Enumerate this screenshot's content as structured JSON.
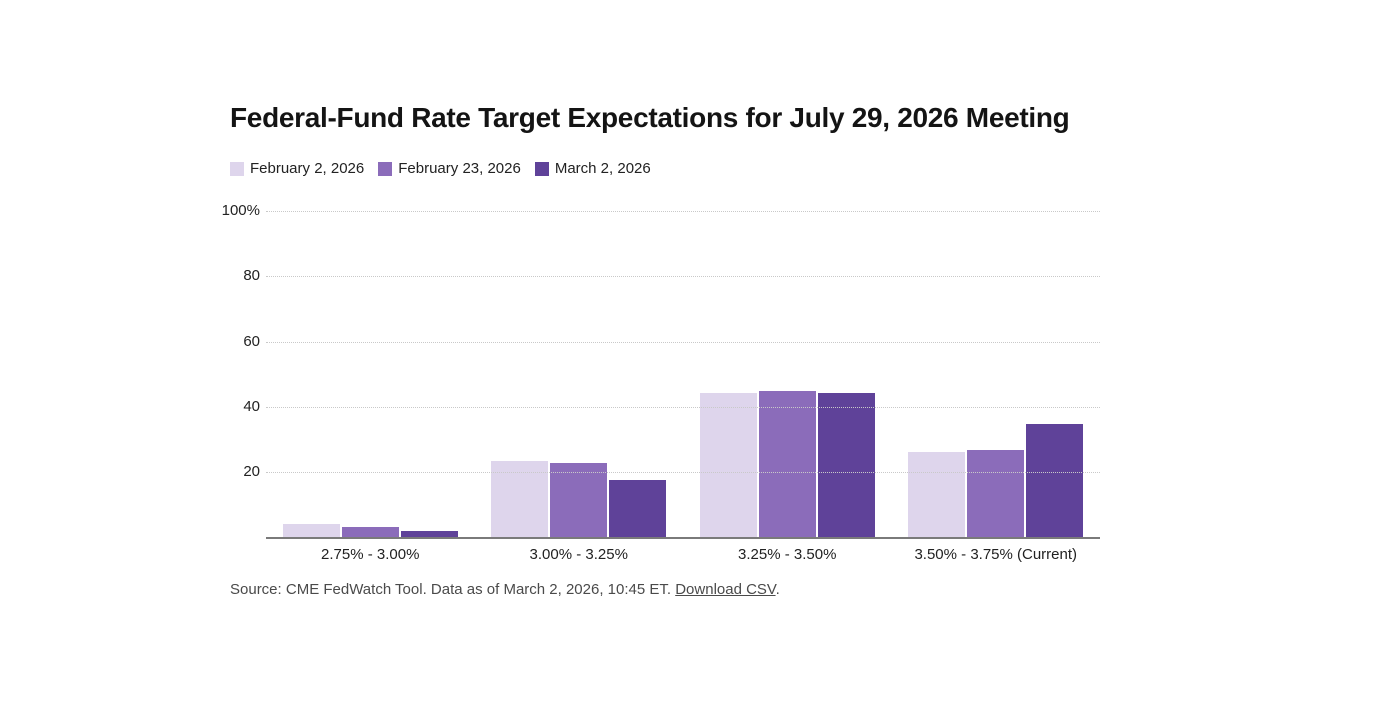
{
  "chart_data": {
    "type": "bar",
    "title": "Federal-Fund Rate Target Expectations for July 29, 2026 Meeting",
    "categories": [
      "2.75% - 3.00%",
      "3.00% - 3.25%",
      "3.25% - 3.50%",
      "3.50% - 3.75% (Current)"
    ],
    "series": [
      {
        "name": "February 2, 2026",
        "color": "#ded5ec",
        "values": [
          4.1,
          23.4,
          44.1,
          26.1
        ]
      },
      {
        "name": "February 23, 2026",
        "color": "#8b6cba",
        "values": [
          3.2,
          22.9,
          45.0,
          26.8
        ]
      },
      {
        "name": "March 2, 2026",
        "color": "#5f4299",
        "values": [
          1.9,
          17.4,
          44.2,
          34.7
        ]
      }
    ],
    "xlabel": "",
    "ylabel": "",
    "ylim": [
      0,
      100
    ],
    "yticks": [
      20,
      40,
      60,
      80,
      100
    ],
    "ytick_labels": [
      "20",
      "40",
      "60",
      "80",
      "100%"
    ],
    "grid": "horizontal-dotted",
    "legend_position": "top-left"
  },
  "source": {
    "prefix": "Source: CME FedWatch Tool. Data as of March 2, 2026, 10:45 ET. ",
    "link_label": "Download CSV",
    "suffix": "."
  },
  "colors": {
    "title_text": "#141414",
    "axis_text": "#222222",
    "gridline": "#c9c9c9",
    "baseline": "#7a7a7a",
    "source_text": "#4a4a4a",
    "background": "#ffffff"
  }
}
